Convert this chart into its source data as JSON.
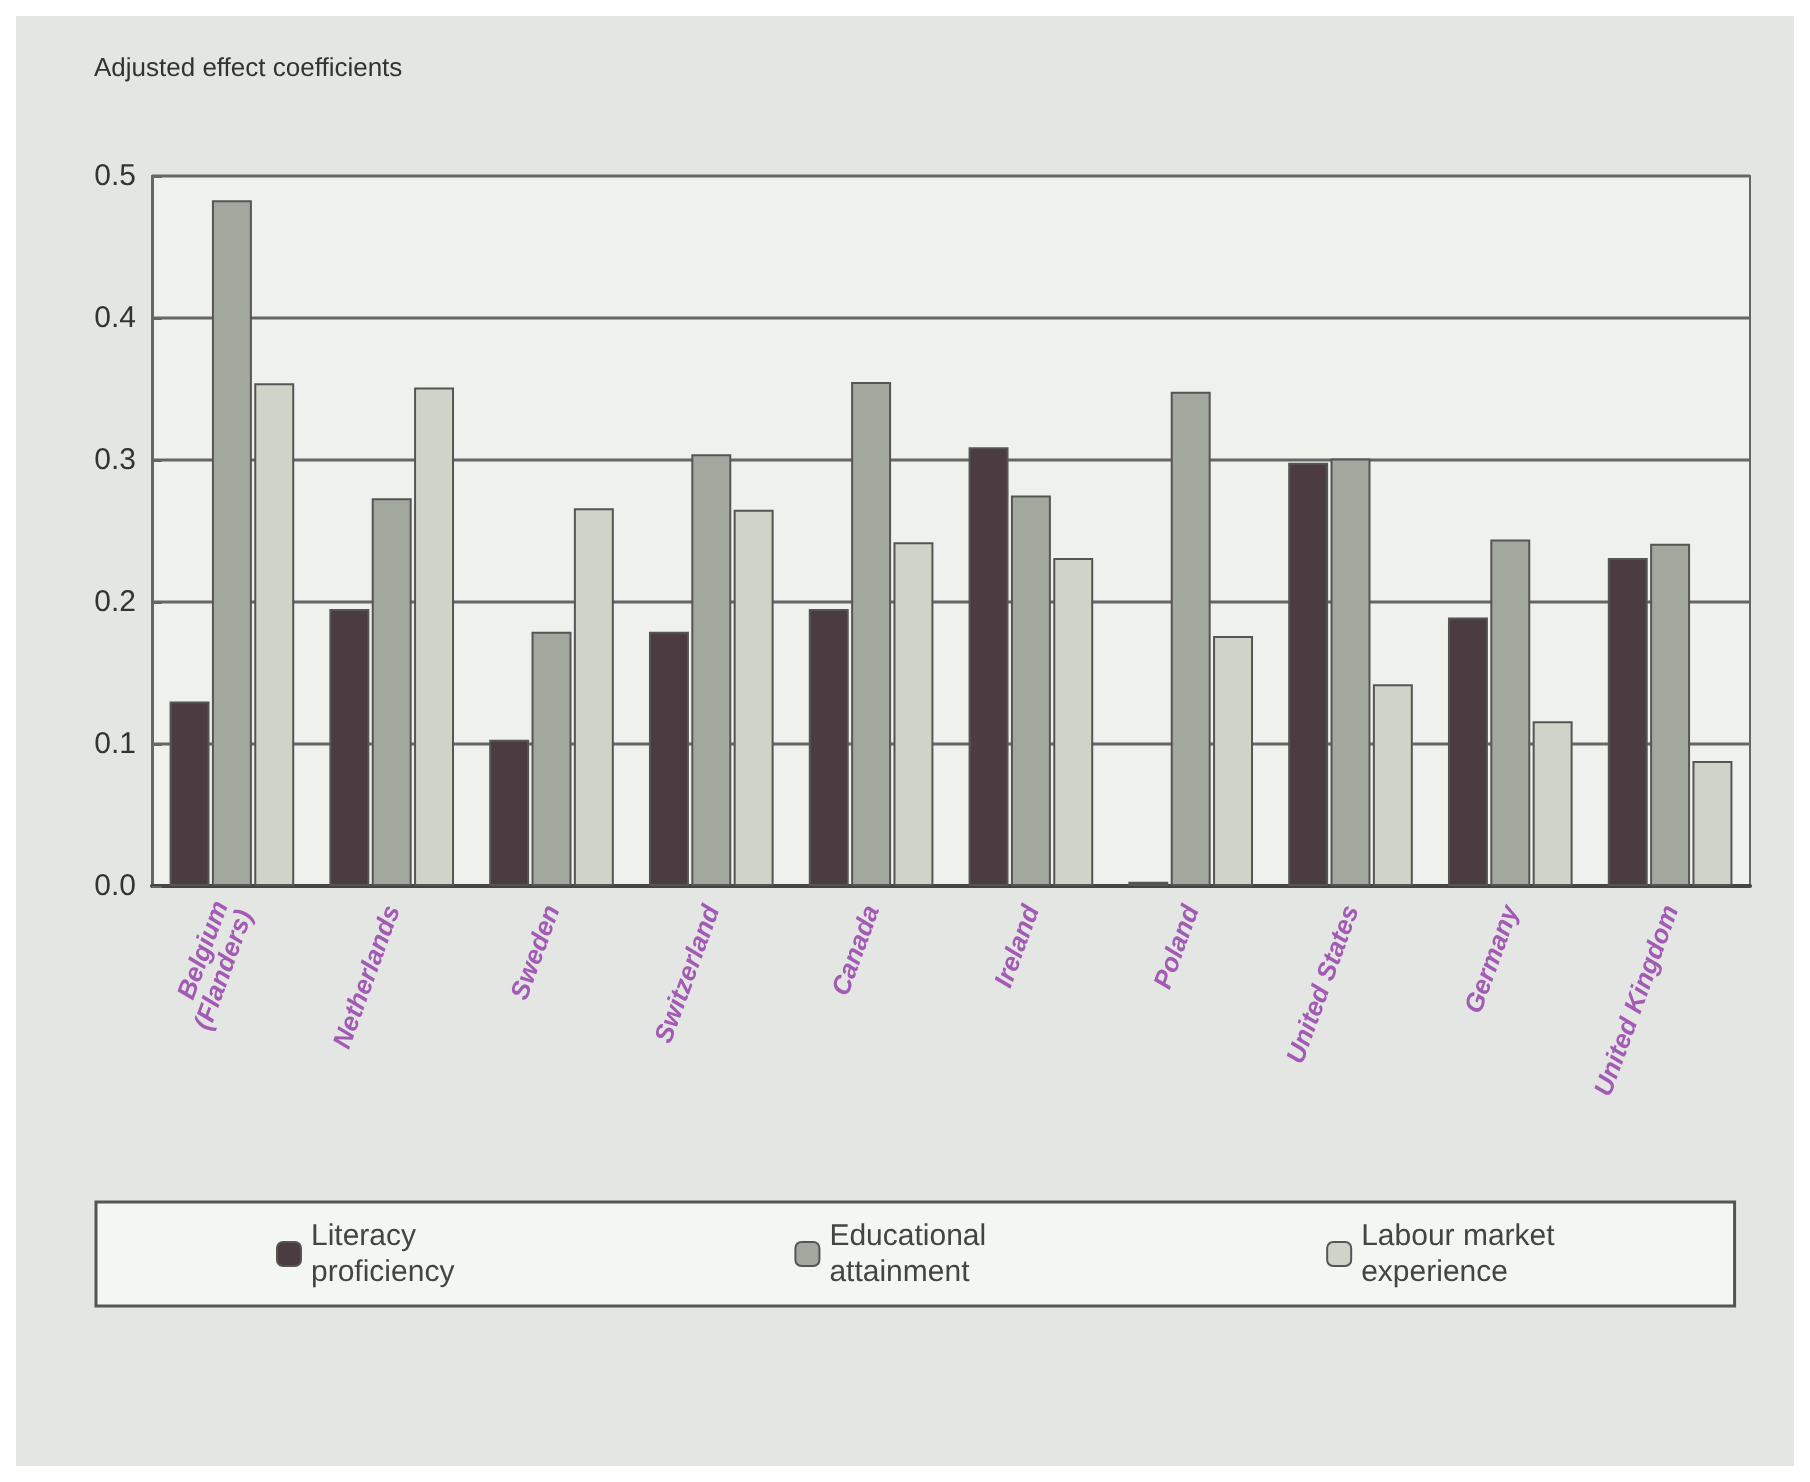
{
  "chart_data": {
    "type": "bar",
    "ylabel": "Adjusted effect coefficients",
    "categories": [
      "Belgium\n(Flanders)",
      "Netherlands",
      "Sweden",
      "Switzerland",
      "Canada",
      "Ireland",
      "Poland",
      "United States",
      "Germany",
      "United Kingdom"
    ],
    "series": [
      {
        "name": "Literacy\nproficiency",
        "color": "#4a3c40",
        "values": [
          0.13,
          0.195,
          0.103,
          0.179,
          0.195,
          0.309,
          0.003,
          0.298,
          0.189,
          0.231
        ]
      },
      {
        "name": "Educational\nattainment",
        "color": "#a3a89f",
        "values": [
          0.483,
          0.273,
          0.179,
          0.304,
          0.355,
          0.275,
          0.348,
          0.301,
          0.244,
          0.241
        ]
      },
      {
        "name": "Labour market\nexperience",
        "color": "#cfd3c8",
        "values": [
          0.354,
          0.351,
          0.266,
          0.265,
          0.242,
          0.231,
          0.176,
          0.142,
          0.116,
          0.088
        ]
      }
    ],
    "ylim": [
      0,
      0.5
    ],
    "yticks": [
      {
        "value": 0,
        "label": "0.0"
      },
      0.1,
      0.2,
      0.3,
      0.4,
      0.5
    ],
    "grid": "y",
    "legend": "bottom"
  }
}
